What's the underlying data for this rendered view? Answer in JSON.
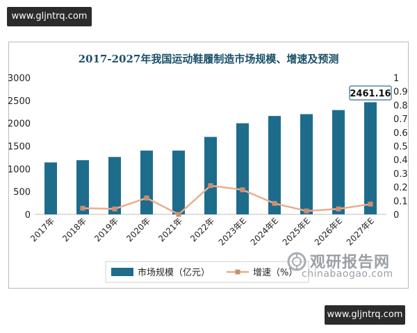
{
  "watermark": {
    "top": "www.gljntrq.com",
    "bottom": "www.gljntrq.com"
  },
  "brand": {
    "name": "观研报告网",
    "url": "chinabaogao.com"
  },
  "colors": {
    "bar": "#1e6c8c",
    "line": "#e8ad8c",
    "marker": "#c98f72",
    "title": "#1a4f6a"
  },
  "chart_data": {
    "type": "bar",
    "title": "2017-2027年我国运动鞋履制造市场规模、增速及预测",
    "categories": [
      "2017年",
      "2018年",
      "2019年",
      "2020年",
      "2021年",
      "2022年",
      "2023年E",
      "2024年E",
      "2025年E",
      "2026年E",
      "2027年E"
    ],
    "ylim": [
      0,
      3000
    ],
    "yticks": [
      0,
      500,
      1000,
      1500,
      2000,
      2500,
      3000
    ],
    "y2lim": [
      0,
      1
    ],
    "y2ticks": [
      0,
      0.1,
      0.2,
      0.3,
      0.4,
      0.5,
      0.6,
      0.7,
      0.8,
      0.9,
      1
    ],
    "series": [
      {
        "name": "市场规模（亿元）",
        "type": "bar",
        "axis": "left",
        "values": [
          1140,
          1190,
          1260,
          1400,
          1400,
          1700,
          2000,
          2160,
          2200,
          2290,
          2461.16
        ]
      },
      {
        "name": "增速（%）",
        "type": "line",
        "axis": "right",
        "values": [
          null,
          0.045,
          0.04,
          0.12,
          0.0,
          0.21,
          0.18,
          0.08,
          0.025,
          0.04,
          0.075
        ]
      }
    ],
    "annotation": {
      "category": "2027年E",
      "text": "2461.16"
    },
    "legend": "bottom",
    "grid": false
  }
}
